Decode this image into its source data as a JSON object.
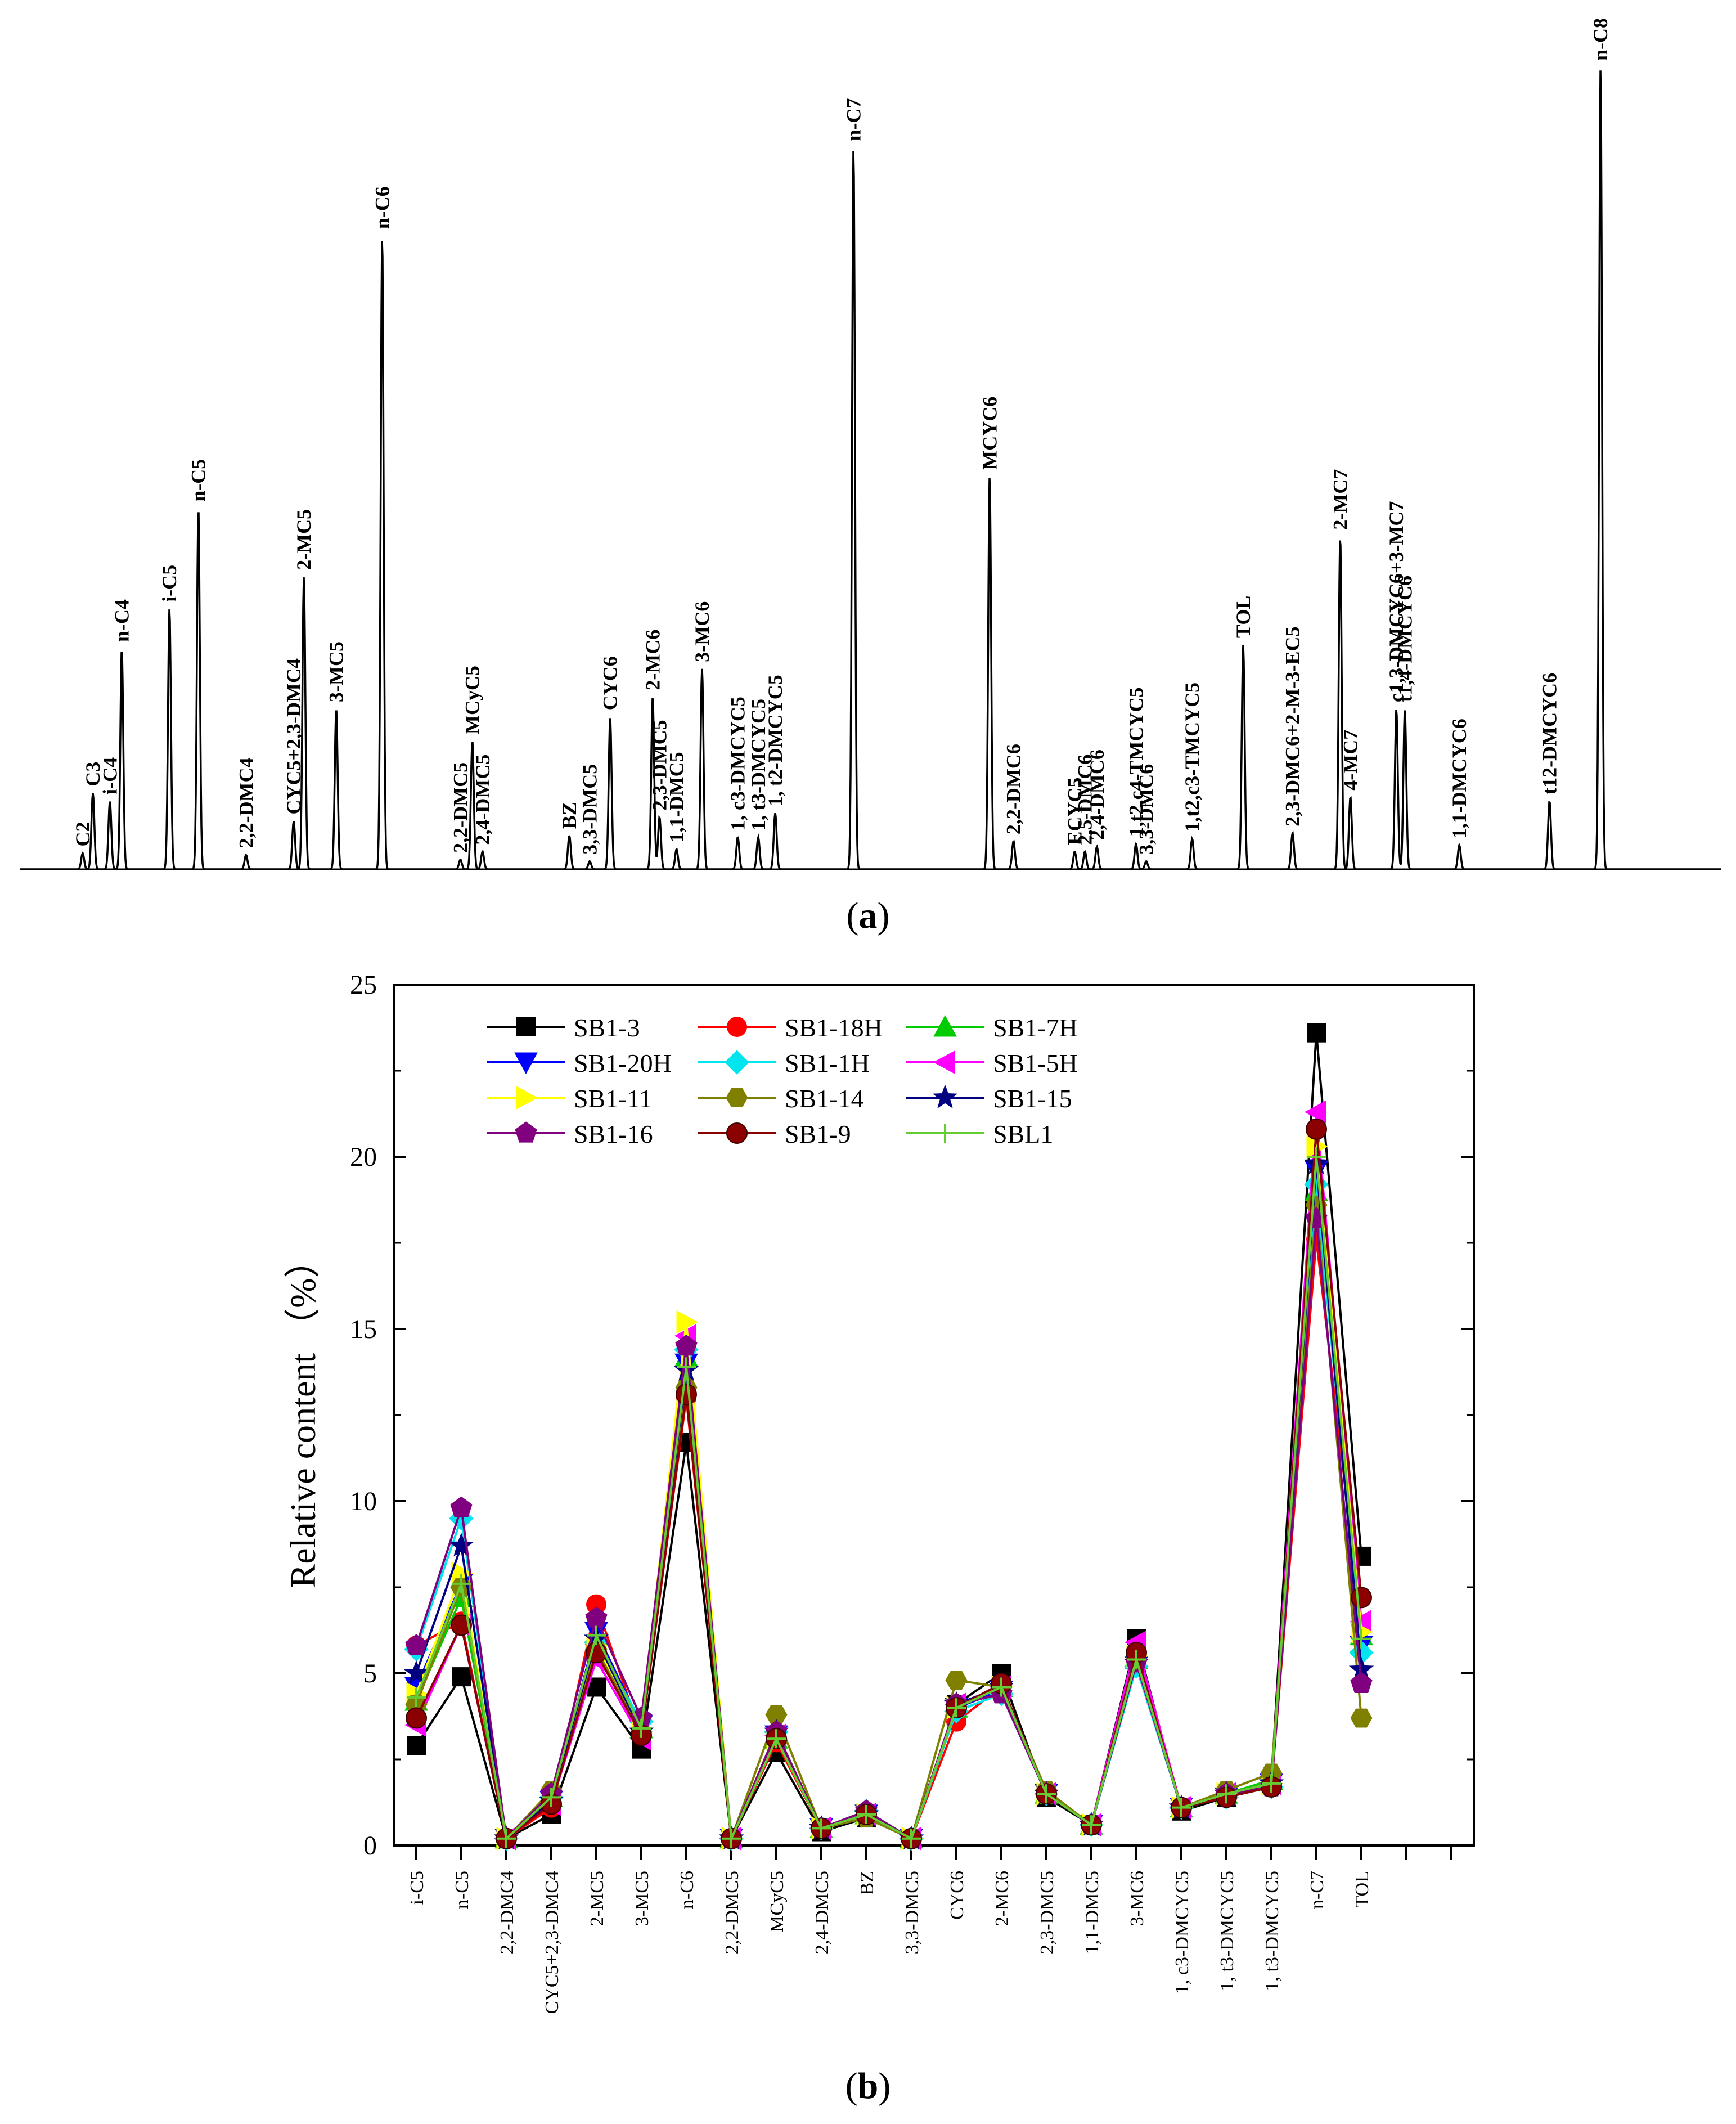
{
  "chromatogram": {
    "label_open": "(",
    "label_letter": "a",
    "label_close": ")",
    "peaks": [
      {
        "label": "C2",
        "t": 0.037,
        "h": 0.02
      },
      {
        "label": "C3",
        "t": 0.043,
        "h": 0.095
      },
      {
        "label": "i-C4",
        "t": 0.053,
        "h": 0.085
      },
      {
        "label": "n-C4",
        "t": 0.06,
        "h": 0.275
      },
      {
        "label": "i-C5",
        "t": 0.088,
        "h": 0.325
      },
      {
        "label": "n-C5",
        "t": 0.105,
        "h": 0.45
      },
      {
        "label": "2,2-DMC4",
        "t": 0.133,
        "h": 0.018
      },
      {
        "label": "CYC5+2,3-DMC4",
        "t": 0.161,
        "h": 0.06
      },
      {
        "label": "2-MC5",
        "t": 0.167,
        "h": 0.365
      },
      {
        "label": "3-MC5",
        "t": 0.186,
        "h": 0.2
      },
      {
        "label": "n-C6",
        "t": 0.213,
        "h": 0.79
      },
      {
        "label": "2,2-DMC5",
        "t": 0.259,
        "h": 0.012
      },
      {
        "label": "MCyC5",
        "t": 0.266,
        "h": 0.16
      },
      {
        "label": "2,4-DMC5",
        "t": 0.272,
        "h": 0.022
      },
      {
        "label": "BZ",
        "t": 0.323,
        "h": 0.042
      },
      {
        "label": "3,3-DMC5",
        "t": 0.335,
        "h": 0.01
      },
      {
        "label": "CYC6",
        "t": 0.347,
        "h": 0.19
      },
      {
        "label": "2-MC6",
        "t": 0.372,
        "h": 0.215
      },
      {
        "label": "2,3-DMC5",
        "t": 0.376,
        "h": 0.065
      },
      {
        "label": "1,1-DMC5",
        "t": 0.386,
        "h": 0.025
      },
      {
        "label": "3-MC6",
        "t": 0.401,
        "h": 0.25
      },
      {
        "label": "1, c3-DMCYC5",
        "t": 0.422,
        "h": 0.04
      },
      {
        "label": "1, t3-DMCYC5",
        "t": 0.434,
        "h": 0.04
      },
      {
        "label": "1, t2-DMCYC5",
        "t": 0.444,
        "h": 0.07
      },
      {
        "label": "n-C7",
        "t": 0.49,
        "h": 0.9
      },
      {
        "label": "MCYC6",
        "t": 0.57,
        "h": 0.49
      },
      {
        "label": "2,2-DMC6",
        "t": 0.584,
        "h": 0.035
      },
      {
        "label": "ECYC5",
        "t": 0.62,
        "h": 0.022
      },
      {
        "label": "2,5-DMC6",
        "t": 0.626,
        "h": 0.022
      },
      {
        "label": "2,4-DMC6",
        "t": 0.633,
        "h": 0.028
      },
      {
        "label": "1,t2,c4-TMCYC5",
        "t": 0.656,
        "h": 0.032
      },
      {
        "label": "3,3-DMC6",
        "t": 0.662,
        "h": 0.01
      },
      {
        "label": "1,t2,c3-TMCYC5",
        "t": 0.689,
        "h": 0.038
      },
      {
        "label": "TOL",
        "t": 0.719,
        "h": 0.28
      },
      {
        "label": "2,3-DMC6+2-M-3-EC5",
        "t": 0.748,
        "h": 0.045
      },
      {
        "label": "2-MC7",
        "t": 0.776,
        "h": 0.415
      },
      {
        "label": "4-MC7",
        "t": 0.782,
        "h": 0.09
      },
      {
        "label": "c1,3-DMCYC6+3-MC7",
        "t": 0.809,
        "h": 0.2
      },
      {
        "label": "t1,4-DMCYC6",
        "t": 0.814,
        "h": 0.2
      },
      {
        "label": "1,1-DMCYC6",
        "t": 0.846,
        "h": 0.03
      },
      {
        "label": "t12-DMCYC6",
        "t": 0.899,
        "h": 0.085
      },
      {
        "label": "n-C8",
        "t": 0.929,
        "h": 1.0
      }
    ]
  },
  "chart_data": {
    "type": "line",
    "label_open": "(",
    "label_letter": "b",
    "label_close": ")",
    "title": "",
    "xlabel": "",
    "ylabel": "Relative content （%）",
    "ylim": [
      0,
      25
    ],
    "yticks": [
      "0",
      "5",
      "10",
      "15",
      "20",
      "25"
    ],
    "legend_position": "top-left",
    "categories": [
      "i-C5",
      "n-C5",
      "2,2-DMC4",
      "CYC5+2,3-DMC4",
      "2-MC5",
      "3-MC5",
      "n-C6",
      "2,2-DMC5",
      "MCyC5",
      "2,4-DMC5",
      "BZ",
      "3,3-DMC5",
      "CYC6",
      "2-MC6",
      "2,3-DMC5",
      "1,1-DMC5",
      "3-MC6",
      "1, c3-DMCYC5",
      "1, t3-DMCYC5",
      "1, t3-DMCYC5",
      "n-C7",
      "TOL"
    ],
    "series": [
      {
        "name": "SB1-3",
        "color": "#000000",
        "marker": "square",
        "values": [
          2.9,
          4.9,
          0.2,
          0.9,
          4.6,
          2.8,
          11.7,
          0.2,
          2.7,
          0.4,
          0.8,
          0.2,
          4.1,
          5.0,
          1.4,
          0.6,
          6.0,
          1.0,
          1.4,
          1.8,
          23.6,
          8.4
        ]
      },
      {
        "name": "SB1-18H",
        "color": "#ff0000",
        "marker": "circle",
        "values": [
          5.8,
          6.5,
          0.2,
          1.1,
          7.0,
          3.2,
          13.0,
          0.2,
          3.0,
          0.5,
          0.9,
          0.2,
          3.6,
          4.6,
          1.5,
          0.6,
          5.4,
          1.1,
          1.5,
          1.7,
          17.6,
          6.4
        ]
      },
      {
        "name": "SB1-7H",
        "color": "#00cc00",
        "marker": "triangle-up",
        "values": [
          4.2,
          7.2,
          0.2,
          1.4,
          6.1,
          3.4,
          14.2,
          0.2,
          3.1,
          0.5,
          0.9,
          0.2,
          4.0,
          4.6,
          1.5,
          0.6,
          5.4,
          1.1,
          1.5,
          1.9,
          19.0,
          6.1
        ]
      },
      {
        "name": "SB1-20H",
        "color": "#0000ff",
        "marker": "triangle-down",
        "values": [
          4.6,
          7.6,
          0.2,
          1.3,
          6.2,
          3.5,
          14.0,
          0.2,
          3.2,
          0.5,
          0.9,
          0.2,
          4.0,
          4.5,
          1.5,
          0.6,
          5.2,
          1.1,
          1.4,
          1.8,
          19.6,
          5.8
        ]
      },
      {
        "name": "SB1-1H",
        "color": "#00e5ee",
        "marker": "diamond",
        "values": [
          5.7,
          9.5,
          0.2,
          1.4,
          5.9,
          3.6,
          14.4,
          0.2,
          3.3,
          0.5,
          1.0,
          0.2,
          3.9,
          4.4,
          1.5,
          0.6,
          5.2,
          1.1,
          1.4,
          1.7,
          19.2,
          5.6
        ]
      },
      {
        "name": "SB1-5H",
        "color": "#ff00ff",
        "marker": "triangle-left",
        "values": [
          3.5,
          6.4,
          0.2,
          1.2,
          5.4,
          3.1,
          14.8,
          0.2,
          3.2,
          0.5,
          0.9,
          0.2,
          4.1,
          4.6,
          1.5,
          0.6,
          5.9,
          1.1,
          1.5,
          1.8,
          21.3,
          6.5
        ]
      },
      {
        "name": "SB1-11",
        "color": "#ffff00",
        "marker": "triangle-right",
        "values": [
          4.4,
          7.9,
          0.2,
          1.4,
          5.8,
          3.4,
          15.2,
          0.2,
          3.1,
          0.5,
          0.9,
          0.2,
          4.0,
          4.6,
          1.5,
          0.6,
          5.5,
          1.1,
          1.5,
          1.8,
          20.3,
          6.2
        ]
      },
      {
        "name": "SB1-14",
        "color": "#808000",
        "marker": "hexagon",
        "values": [
          4.1,
          7.5,
          0.2,
          1.6,
          5.7,
          3.3,
          13.3,
          0.2,
          3.8,
          0.5,
          0.8,
          0.2,
          4.8,
          4.6,
          1.6,
          0.6,
          5.4,
          1.1,
          1.6,
          2.1,
          18.6,
          3.7
        ]
      },
      {
        "name": "SB1-15",
        "color": "#000080",
        "marker": "star",
        "values": [
          5.0,
          8.7,
          0.2,
          1.3,
          6.0,
          3.3,
          13.8,
          0.2,
          3.3,
          0.5,
          0.9,
          0.2,
          4.1,
          4.6,
          1.5,
          0.6,
          5.3,
          1.1,
          1.5,
          1.8,
          19.8,
          5.1
        ]
      },
      {
        "name": "SB1-16",
        "color": "#800080",
        "marker": "pentagon",
        "values": [
          5.8,
          9.8,
          0.2,
          1.5,
          6.6,
          3.7,
          14.5,
          0.2,
          3.3,
          0.5,
          1.0,
          0.2,
          4.1,
          4.4,
          1.5,
          0.6,
          5.3,
          1.1,
          1.5,
          1.7,
          18.2,
          4.7
        ]
      },
      {
        "name": "SB1-9",
        "color": "#8b0000",
        "marker": "ball",
        "values": [
          3.7,
          6.4,
          0.2,
          1.2,
          5.6,
          3.2,
          13.1,
          0.2,
          3.1,
          0.5,
          0.9,
          0.2,
          4.0,
          4.7,
          1.5,
          0.6,
          5.6,
          1.1,
          1.4,
          1.7,
          20.8,
          7.2
        ]
      },
      {
        "name": "SBL1",
        "color": "#66cc33",
        "marker": "plus",
        "values": [
          4.3,
          7.6,
          0.2,
          1.4,
          6.1,
          3.4,
          13.9,
          0.2,
          3.1,
          0.5,
          0.9,
          0.2,
          4.0,
          4.6,
          1.5,
          0.6,
          5.4,
          1.1,
          1.5,
          1.8,
          20.0,
          6.0
        ]
      }
    ]
  }
}
